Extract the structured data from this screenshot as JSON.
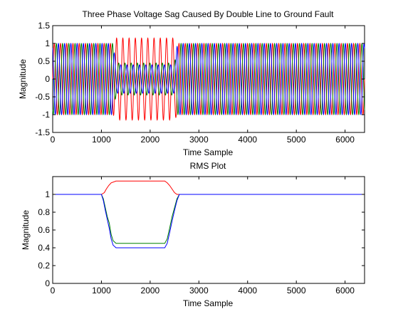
{
  "colors": {
    "red": "#ff0000",
    "green": "#008000",
    "blue": "#0000ff",
    "axis": "#000000"
  },
  "chart_data": [
    {
      "type": "line",
      "title": "Three Phase Voltage Sag Caused By Double Line to Ground Fault",
      "xlabel": "Time Sample",
      "ylabel": "Magnitude",
      "xlim": [
        0,
        6400
      ],
      "ylim": [
        -1.5,
        1.5
      ],
      "xticks": [
        0,
        1000,
        2000,
        3000,
        4000,
        5000,
        6000
      ],
      "yticks": [
        -1.5,
        -1,
        -0.5,
        0,
        0.5,
        1,
        1.5
      ],
      "xtick_labels": [
        "0",
        "1000",
        "2000",
        "3000",
        "4000",
        "5000",
        "6000"
      ],
      "ytick_labels": [
        "-1.5",
        "-1",
        "-0.5",
        "0",
        "0.5",
        "1",
        "1.5"
      ],
      "grid": false,
      "waveform": {
        "cycle_samples": 128,
        "fault_start": 1300,
        "fault_end": 2500,
        "normal_amplitude": 1.0,
        "sag_amplitude_red": 1.15,
        "sag_amplitude_green": 0.45,
        "sag_amplitude_blue": 0.4
      },
      "series": [
        {
          "color": "#ff0000",
          "phase_deg": 0
        },
        {
          "color": "#008000",
          "phase_deg": -120
        },
        {
          "color": "#0000ff",
          "phase_deg": 120
        }
      ]
    },
    {
      "type": "line",
      "title": "RMS Plot",
      "xlabel": "Time Sample",
      "ylabel": "Magnitude",
      "xlim": [
        0,
        6400
      ],
      "ylim": [
        0,
        1.2
      ],
      "xticks": [
        0,
        1000,
        2000,
        3000,
        4000,
        5000,
        6000
      ],
      "yticks": [
        0,
        0.2,
        0.4,
        0.6,
        0.8,
        1
      ],
      "xtick_labels": [
        "0",
        "1000",
        "2000",
        "3000",
        "4000",
        "5000",
        "6000"
      ],
      "ytick_labels": [
        "0",
        "0.2",
        "0.4",
        "0.6",
        "0.8",
        "1"
      ],
      "grid": false,
      "series": [
        {
          "color": "#ff0000",
          "x": [
            0,
            1000,
            1060,
            1100,
            1150,
            1200,
            1300,
            2300,
            2350,
            2400,
            2450,
            2500,
            2550,
            6400
          ],
          "y": [
            1,
            1,
            1.02,
            1.06,
            1.1,
            1.13,
            1.15,
            1.15,
            1.13,
            1.1,
            1.06,
            1.02,
            1,
            1
          ]
        },
        {
          "color": "#008000",
          "x": [
            0,
            1000,
            1040,
            1080,
            1120,
            1160,
            1200,
            1240,
            1300,
            2300,
            2350,
            2400,
            2450,
            2500,
            2550,
            2600,
            6400
          ],
          "y": [
            1,
            1,
            0.95,
            0.85,
            0.75,
            0.68,
            0.55,
            0.48,
            0.45,
            0.45,
            0.5,
            0.62,
            0.75,
            0.85,
            0.95,
            1,
            1
          ]
        },
        {
          "color": "#0000ff",
          "x": [
            0,
            1000,
            1040,
            1080,
            1120,
            1160,
            1200,
            1240,
            1300,
            2300,
            2350,
            2400,
            2450,
            2500,
            2550,
            2600,
            6400
          ],
          "y": [
            1,
            1,
            0.93,
            0.82,
            0.72,
            0.62,
            0.5,
            0.43,
            0.4,
            0.4,
            0.45,
            0.57,
            0.7,
            0.82,
            0.93,
            1,
            1
          ]
        }
      ]
    }
  ]
}
